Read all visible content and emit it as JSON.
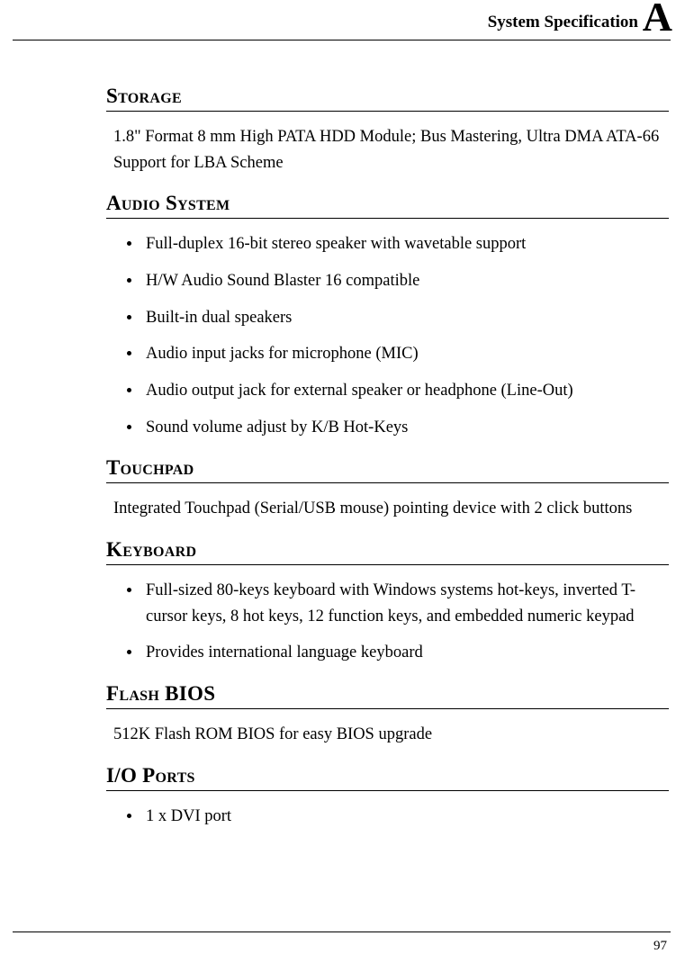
{
  "header": {
    "title": "System Specification",
    "section_letter": "A"
  },
  "sections": {
    "storage": {
      "heading": "Storage",
      "body": "1.8\" Format 8 mm High PATA HDD Module; Bus Mastering, Ultra DMA ATA-66 Support for LBA Scheme"
    },
    "audio": {
      "heading": "Audio System",
      "items": [
        "Full-duplex 16-bit stereo speaker with wavetable support",
        "H/W Audio Sound Blaster 16 compatible",
        "Built-in dual speakers",
        "Audio input jacks for microphone (MIC)",
        "Audio output jack for external speaker or headphone (Line-Out)",
        "Sound volume adjust by K/B Hot-Keys"
      ]
    },
    "touchpad": {
      "heading": "Touchpad",
      "body": "Integrated Touchpad (Serial/USB mouse) pointing device with 2 click buttons"
    },
    "keyboard": {
      "heading": "Keyboard",
      "items": [
        "Full-sized 80-keys keyboard with Windows systems hot-keys, inverted T-cursor keys, 8 hot keys, 12 function keys, and embedded numeric keypad",
        "Provides international language keyboard"
      ]
    },
    "flashbios": {
      "heading": "Flash BIOS",
      "body": "512K Flash ROM BIOS for easy BIOS upgrade"
    },
    "ioports": {
      "heading": "I/O Ports",
      "items": [
        "1 x DVI port"
      ]
    }
  },
  "page_number": "97"
}
